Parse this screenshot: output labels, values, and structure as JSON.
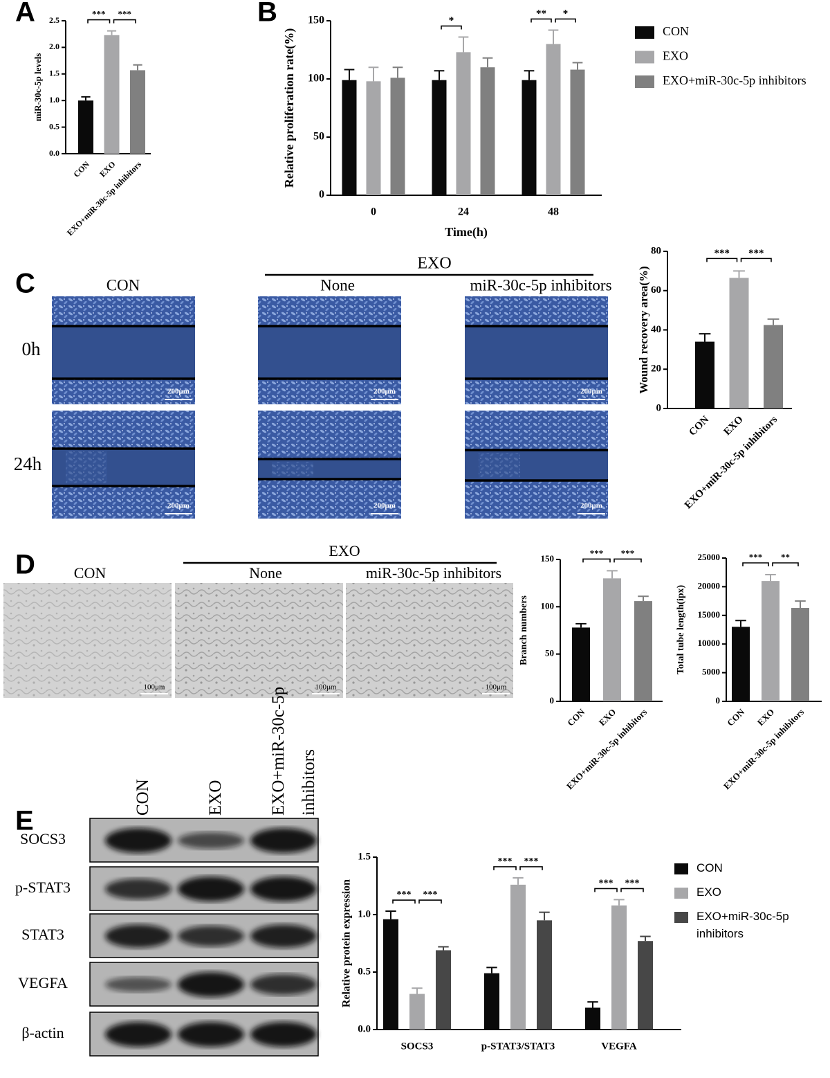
{
  "panel_labels": [
    "A",
    "B",
    "C",
    "D",
    "E"
  ],
  "chart_data": [
    {
      "type": "bar",
      "ylabel": "miR-30c-5p levels",
      "categories": [
        "CON",
        "EXO",
        "EXO+miR-30c-5p inhibitors"
      ],
      "values": [
        1.0,
        2.23,
        1.57
      ],
      "errors": [
        0.07,
        0.08,
        0.1
      ],
      "colors": [
        "#0a0a0a",
        "#a7a7a9",
        "#808080"
      ],
      "ylim": [
        0,
        2.5
      ],
      "yticks": [
        {
          "value": 0,
          "label": "0.0"
        },
        {
          "value": 0.5,
          "label": "0.5"
        },
        {
          "value": 1,
          "label": "1.0"
        },
        {
          "value": 1.5,
          "label": "1.5"
        },
        {
          "value": 2,
          "label": "2.0"
        },
        {
          "value": 2.5,
          "label": "2.5"
        }
      ],
      "annotations": [
        "***",
        "***"
      ]
    },
    {
      "type": "grouped_bar",
      "ylabel": "Relative proliferation rate(%)",
      "xlabel": "Time(h)",
      "categories": [
        "0",
        "24",
        "48"
      ],
      "series": [
        {
          "name": "CON",
          "color": "#0a0a0a",
          "values": [
            99,
            99,
            99
          ],
          "errors": [
            9,
            8,
            8
          ]
        },
        {
          "name": "EXO",
          "color": "#a7a7a9",
          "values": [
            98,
            123,
            130
          ],
          "errors": [
            12,
            13,
            12
          ]
        },
        {
          "name": "EXO+miR-30c-5p inhibitors",
          "color": "#808080",
          "values": [
            101,
            110,
            108
          ],
          "errors": [
            9,
            8,
            6
          ]
        }
      ],
      "ylim": [
        0,
        150
      ],
      "yticks": [
        0,
        50,
        100,
        150
      ],
      "annotations": [
        [],
        [
          "*"
        ],
        [
          "**",
          "*"
        ]
      ]
    },
    {
      "type": "bar",
      "ylabel": "Wound recovery area(%)",
      "categories": [
        "CON",
        "EXO",
        "EXO+miR-30c-5p inhibitors"
      ],
      "values": [
        34,
        66.5,
        42.5
      ],
      "errors": [
        4,
        3.5,
        3
      ],
      "colors": [
        "#0a0a0a",
        "#a7a7a9",
        "#808080"
      ],
      "ylim": [
        0,
        80
      ],
      "yticks": [
        0,
        20,
        40,
        60,
        80
      ],
      "annotations": [
        "***",
        "***"
      ]
    },
    {
      "type": "bar",
      "ylabel": "Branch numbers",
      "categories": [
        "CON",
        "EXO",
        "EXO+miR-30c-5p inhibitors"
      ],
      "values": [
        78,
        130,
        106
      ],
      "errors": [
        4,
        8,
        5
      ],
      "colors": [
        "#0a0a0a",
        "#a7a7a9",
        "#808080"
      ],
      "ylim": [
        0,
        150
      ],
      "yticks": [
        0,
        50,
        100,
        150
      ],
      "annotations": [
        "***",
        "***"
      ]
    },
    {
      "type": "bar",
      "ylabel": "Total tube length(ipx)",
      "categories": [
        "CON",
        "EXO",
        "EXO+miR-30c-5p inhibitors"
      ],
      "values": [
        13000,
        21000,
        16300
      ],
      "errors": [
        1100,
        1100,
        1200
      ],
      "colors": [
        "#0a0a0a",
        "#a7a7a9",
        "#808080"
      ],
      "ylim": [
        0,
        25000
      ],
      "yticks": [
        0,
        5000,
        10000,
        15000,
        20000,
        25000
      ],
      "annotations": [
        "***",
        "**"
      ]
    },
    {
      "type": "grouped_bar",
      "ylabel": "Relative protein expression",
      "categories": [
        "SOCS3",
        "p-STAT3/STAT3",
        "VEGFA"
      ],
      "series": [
        {
          "name": "CON",
          "color": "#0a0a0a",
          "values": [
            0.96,
            0.49,
            0.19
          ],
          "errors": [
            0.07,
            0.05,
            0.05
          ]
        },
        {
          "name": "EXO",
          "color": "#a7a7a9",
          "values": [
            0.31,
            1.26,
            1.08
          ],
          "errors": [
            0.05,
            0.06,
            0.05
          ]
        },
        {
          "name": "EXO+miR-30c-5p inhibitors",
          "color": "#474747",
          "values": [
            0.69,
            0.95,
            0.77
          ],
          "errors": [
            0.03,
            0.07,
            0.04
          ]
        }
      ],
      "ylim": [
        0,
        1.5
      ],
      "yticks": [
        {
          "value": 0,
          "label": "0.0"
        },
        {
          "value": 0.5,
          "label": "0.5"
        },
        {
          "value": 1,
          "label": "1.0"
        },
        {
          "value": 1.5,
          "label": "1.5"
        }
      ],
      "annotations": [
        [
          "***",
          "***"
        ],
        [
          "***",
          "***"
        ],
        [
          "***",
          "***"
        ]
      ]
    }
  ],
  "wound_assay": {
    "group_label": "EXO",
    "columns": [
      "CON",
      "None",
      "miR-30c-5p inhibitors"
    ],
    "rows": [
      "0h",
      "24h"
    ],
    "scale_label": "200μm"
  },
  "tube_assay": {
    "group_label": "EXO",
    "columns": [
      "CON",
      "None",
      "miR-30c-5p inhibitors"
    ],
    "scale_label": "100μm"
  },
  "western_blot": {
    "lanes": [
      "CON",
      "EXO",
      "EXO+miR-30c-5p inhibitors"
    ],
    "proteins": [
      "SOCS3",
      "p-STAT3",
      "STAT3",
      "VEGFA",
      "β-actin"
    ]
  }
}
